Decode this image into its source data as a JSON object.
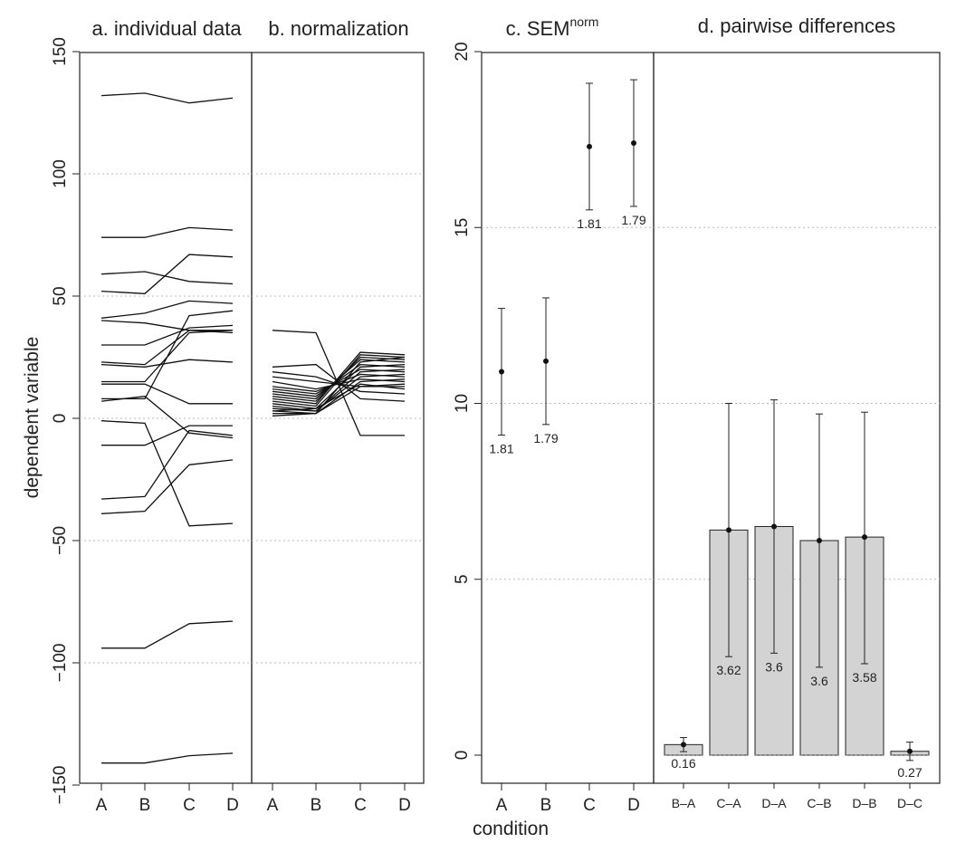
{
  "axis_labels": {
    "y": "dependent variable",
    "x": "condition"
  },
  "chart_data": [
    {
      "type": "line",
      "panel": "a",
      "title": "a. individual data",
      "ylabel": "dependent variable",
      "categories": [
        "A",
        "B",
        "C",
        "D"
      ],
      "ylim": [
        -150,
        150
      ],
      "yticks": [
        -150,
        -100,
        -50,
        0,
        50,
        100,
        150
      ],
      "grid": "dotted horizontal at -100, -50, 0, 50, 100",
      "series": [
        {
          "values": [
            132,
            133,
            129,
            131
          ]
        },
        {
          "values": [
            74,
            74,
            78,
            77
          ]
        },
        {
          "values": [
            59,
            60,
            56,
            55
          ]
        },
        {
          "values": [
            52,
            51,
            67,
            66
          ]
        },
        {
          "values": [
            41,
            43,
            48,
            47
          ]
        },
        {
          "values": [
            40,
            39,
            36,
            36
          ]
        },
        {
          "values": [
            30,
            30,
            37,
            38
          ]
        },
        {
          "values": [
            23,
            22,
            36,
            35
          ]
        },
        {
          "values": [
            22,
            21,
            24,
            23
          ]
        },
        {
          "values": [
            15,
            15,
            35,
            36
          ]
        },
        {
          "values": [
            14,
            14,
            6,
            6
          ]
        },
        {
          "values": [
            8,
            8,
            42,
            44
          ]
        },
        {
          "values": [
            7,
            9,
            -6,
            -8
          ]
        },
        {
          "values": [
            -1,
            -2,
            -44,
            -43
          ]
        },
        {
          "values": [
            -11,
            -11,
            -3,
            -3
          ]
        },
        {
          "values": [
            -33,
            -32,
            -5,
            -7
          ]
        },
        {
          "values": [
            -39,
            -38,
            -19,
            -17
          ]
        },
        {
          "values": [
            -94,
            -94,
            -84,
            -83
          ]
        },
        {
          "values": [
            -141,
            -141,
            -138,
            -137
          ]
        }
      ]
    },
    {
      "type": "line",
      "panel": "b",
      "title": "b. normalization",
      "categories": [
        "A",
        "B",
        "C",
        "D"
      ],
      "ylim": [
        -150,
        150
      ],
      "series": [
        {
          "values": [
            36,
            35,
            -7,
            -7
          ]
        },
        {
          "values": [
            21,
            22,
            8,
            7
          ]
        },
        {
          "values": [
            19,
            17,
            11,
            10
          ]
        },
        {
          "values": [
            17,
            15,
            13,
            13
          ]
        },
        {
          "values": [
            15,
            12,
            16,
            15
          ]
        },
        {
          "values": [
            13,
            11,
            18,
            17
          ]
        },
        {
          "values": [
            12,
            10,
            20,
            19
          ]
        },
        {
          "values": [
            11,
            9,
            22,
            21
          ]
        },
        {
          "values": [
            10,
            8,
            24,
            23
          ]
        },
        {
          "values": [
            9,
            7,
            25,
            24
          ]
        },
        {
          "values": [
            8,
            6,
            27,
            26
          ]
        },
        {
          "values": [
            7,
            5,
            26,
            25
          ]
        },
        {
          "values": [
            6,
            4,
            21,
            22
          ]
        },
        {
          "values": [
            5,
            3,
            19,
            20
          ]
        },
        {
          "values": [
            4,
            3,
            17,
            18
          ]
        },
        {
          "values": [
            3,
            2,
            15,
            16
          ]
        },
        {
          "values": [
            2,
            2,
            13,
            14
          ]
        },
        {
          "values": [
            1,
            2,
            23,
            25
          ]
        },
        {
          "values": [
            3,
            4,
            14,
            12
          ]
        }
      ]
    },
    {
      "type": "scatter",
      "panel": "c",
      "title": "c. SEM",
      "title_superscript": "norm",
      "xlabel": "condition",
      "categories": [
        "A",
        "B",
        "C",
        "D"
      ],
      "values": [
        10.9,
        11.2,
        17.3,
        17.4
      ],
      "error_low": [
        9.1,
        9.4,
        15.5,
        15.6
      ],
      "error_high": [
        12.7,
        13.0,
        19.1,
        19.2
      ],
      "labels": [
        "1.81",
        "1.79",
        "1.81",
        "1.79"
      ],
      "ylim": [
        -1.6,
        20
      ],
      "yticks": [
        0,
        5,
        10,
        15,
        20
      ],
      "grid": "dotted horizontal at 5, 10, 15"
    },
    {
      "type": "bar",
      "panel": "d",
      "title": "d. pairwise differences",
      "categories": [
        "B–A",
        "C–A",
        "D–A",
        "C–B",
        "D–B",
        "D–C"
      ],
      "values": [
        0.3,
        6.4,
        6.5,
        6.1,
        6.2,
        0.11
      ],
      "error_low": [
        0.1,
        2.8,
        2.9,
        2.5,
        2.6,
        -0.15
      ],
      "error_high": [
        0.5,
        10.0,
        10.1,
        9.7,
        9.75,
        0.37
      ],
      "labels": [
        "0.16",
        "3.62",
        "3.6",
        "3.6",
        "3.58",
        "0.27"
      ],
      "colors": {
        "bar_fill": "#d3d3d3",
        "bar_stroke": "#222222"
      },
      "ylim": [
        -1.6,
        20
      ]
    }
  ]
}
